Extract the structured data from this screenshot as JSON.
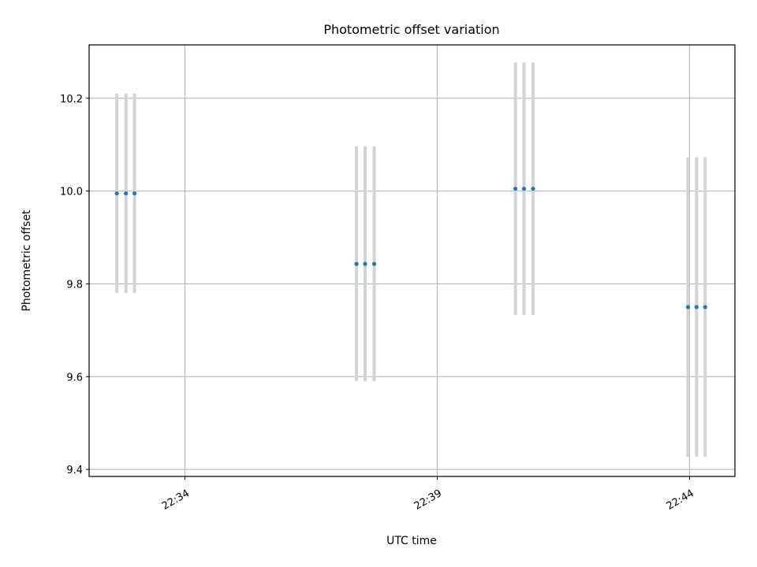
{
  "chart_data": {
    "type": "scatter",
    "title": "Photometric offset variation",
    "xlabel": "UTC time",
    "ylabel": "Photometric offset",
    "x_unit": "minutes of 22:00",
    "xlim": [
      32.1,
      44.9
    ],
    "ylim": [
      9.385,
      10.315
    ],
    "xticks": [
      {
        "value": 34,
        "label": "22:34"
      },
      {
        "value": 39,
        "label": "22:39"
      },
      {
        "value": 44,
        "label": "22:44"
      }
    ],
    "yticks": [
      {
        "value": 9.4,
        "label": "9.4"
      },
      {
        "value": 9.6,
        "label": "9.6"
      },
      {
        "value": 9.8,
        "label": "9.8"
      },
      {
        "value": 10.0,
        "label": "10.0"
      },
      {
        "value": 10.2,
        "label": "10.2"
      }
    ],
    "grid": true,
    "colors": {
      "points": "#1f77b4",
      "errorbars": "#d3d3d3",
      "grid": "#b0b0b0"
    },
    "series": [
      {
        "points": [
          {
            "x": 32.65,
            "y": 9.995,
            "yerr": 0.215
          },
          {
            "x": 32.83,
            "y": 9.995,
            "yerr": 0.215
          },
          {
            "x": 33.0,
            "y": 9.995,
            "yerr": 0.215
          },
          {
            "x": 37.4,
            "y": 9.843,
            "yerr": 0.253
          },
          {
            "x": 37.57,
            "y": 9.843,
            "yerr": 0.253
          },
          {
            "x": 37.75,
            "y": 9.843,
            "yerr": 0.253
          },
          {
            "x": 40.55,
            "y": 10.005,
            "yerr": 0.272
          },
          {
            "x": 40.72,
            "y": 10.005,
            "yerr": 0.272
          },
          {
            "x": 40.9,
            "y": 10.005,
            "yerr": 0.272
          },
          {
            "x": 43.97,
            "y": 9.75,
            "yerr": 0.323
          },
          {
            "x": 44.14,
            "y": 9.75,
            "yerr": 0.323
          },
          {
            "x": 44.31,
            "y": 9.75,
            "yerr": 0.323
          }
        ]
      }
    ]
  }
}
